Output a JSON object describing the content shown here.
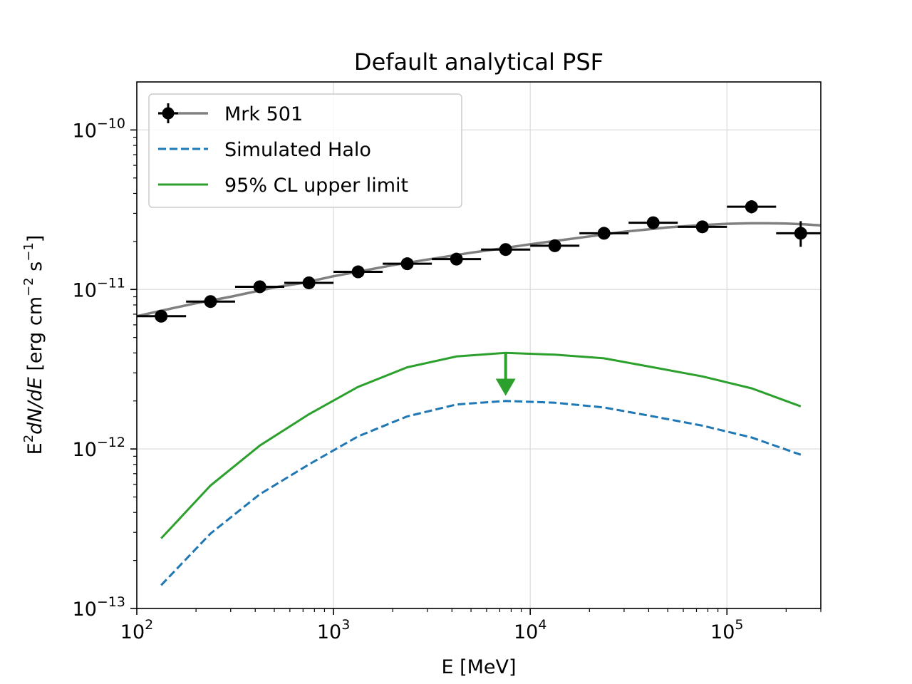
{
  "chart_data": {
    "type": "line",
    "title": "Default analytical PSF",
    "xlabel": "E [MeV]",
    "ylabel_base": "E",
    "ylabel_base_sup": "2",
    "ylabel_italic": "dN/dE",
    "ylabel_unit_open": " [erg cm",
    "ylabel_unit_sup1": "−2",
    "ylabel_unit_mid": " s",
    "ylabel_unit_sup2": "−1",
    "ylabel_unit_close": "]",
    "xscale": "log",
    "yscale": "log",
    "xlim": [
      100,
      300000
    ],
    "ylim": [
      1e-13,
      2e-10
    ],
    "grid": true,
    "legend_position": "upper-left",
    "x_ticks": [
      {
        "value": 100,
        "base": "10",
        "exp": "2"
      },
      {
        "value": 1000,
        "base": "10",
        "exp": "3"
      },
      {
        "value": 10000,
        "base": "10",
        "exp": "4"
      },
      {
        "value": 100000,
        "base": "10",
        "exp": "5"
      }
    ],
    "y_ticks": [
      {
        "value": 1e-13,
        "base": "10",
        "exp": "−13"
      },
      {
        "value": 1e-12,
        "base": "10",
        "exp": "−12"
      },
      {
        "value": 1e-11,
        "base": "10",
        "exp": "−11"
      },
      {
        "value": 1e-10,
        "base": "10",
        "exp": "−10"
      }
    ],
    "series": [
      {
        "name": "Mrk 501",
        "kind": "errorbar+model",
        "color": "#000000",
        "model_color": "#808080",
        "points": [
          {
            "x": 133,
            "y": 6.8e-12,
            "xlo": 100,
            "xhi": 178,
            "ylo": 6.5e-12,
            "yhi": 7.1e-12
          },
          {
            "x": 237,
            "y": 8.4e-12,
            "xlo": 178,
            "xhi": 316,
            "ylo": 8.1e-12,
            "yhi": 8.7e-12
          },
          {
            "x": 422,
            "y": 1.04e-11,
            "xlo": 316,
            "xhi": 562,
            "ylo": 1e-11,
            "yhi": 1.08e-11
          },
          {
            "x": 750,
            "y": 1.1e-11,
            "xlo": 562,
            "xhi": 1000,
            "ylo": 1.06e-11,
            "yhi": 1.14e-11
          },
          {
            "x": 1334,
            "y": 1.29e-11,
            "xlo": 1000,
            "xhi": 1778,
            "ylo": 1.25e-11,
            "yhi": 1.33e-11
          },
          {
            "x": 2371,
            "y": 1.45e-11,
            "xlo": 1778,
            "xhi": 3162,
            "ylo": 1.41e-11,
            "yhi": 1.49e-11
          },
          {
            "x": 4217,
            "y": 1.55e-11,
            "xlo": 3162,
            "xhi": 5623,
            "ylo": 1.5e-11,
            "yhi": 1.6e-11
          },
          {
            "x": 7499,
            "y": 1.78e-11,
            "xlo": 5623,
            "xhi": 10000,
            "ylo": 1.72e-11,
            "yhi": 1.84e-11
          },
          {
            "x": 13335,
            "y": 1.88e-11,
            "xlo": 10000,
            "xhi": 17783,
            "ylo": 1.81e-11,
            "yhi": 1.95e-11
          },
          {
            "x": 23714,
            "y": 2.25e-11,
            "xlo": 17783,
            "xhi": 31623,
            "ylo": 2.16e-11,
            "yhi": 2.34e-11
          },
          {
            "x": 42170,
            "y": 2.62e-11,
            "xlo": 31623,
            "xhi": 56234,
            "ylo": 2.5e-11,
            "yhi": 2.74e-11
          },
          {
            "x": 74989,
            "y": 2.47e-11,
            "xlo": 56234,
            "xhi": 100000,
            "ylo": 2.3e-11,
            "yhi": 2.64e-11
          },
          {
            "x": 133352,
            "y": 3.3e-11,
            "xlo": 100000,
            "xhi": 177828,
            "ylo": 3e-11,
            "yhi": 3.62e-11
          },
          {
            "x": 237137,
            "y": 2.25e-11,
            "xlo": 177828,
            "xhi": 316228,
            "ylo": 1.85e-11,
            "yhi": 2.68e-11
          }
        ],
        "model": {
          "x": [
            100,
            150,
            200,
            300,
            500,
            700,
            1000,
            2000,
            3000,
            5000,
            7000,
            10000,
            20000,
            30000,
            50000,
            70000,
            100000,
            130000,
            160000,
            200000,
            250000,
            300000
          ],
          "y": [
            6.8e-12,
            7.6e-12,
            8.2e-12,
            9e-12,
            1.03e-11,
            1.1e-11,
            1.21e-11,
            1.42e-11,
            1.54e-11,
            1.7e-11,
            1.8e-11,
            1.92e-11,
            2.15e-11,
            2.3e-11,
            2.45e-11,
            2.52e-11,
            2.58e-11,
            2.6e-11,
            2.6e-11,
            2.59e-11,
            2.56e-11,
            2.52e-11
          ]
        }
      },
      {
        "name": "Simulated Halo",
        "kind": "line",
        "style": "dashed",
        "color": "#1f77b4",
        "x": [
          133,
          237,
          422,
          750,
          1334,
          2371,
          4217,
          7499,
          13335,
          23714,
          42170,
          74989,
          133352,
          237137
        ],
        "y": [
          1.4e-13,
          2.95e-13,
          5.2e-13,
          8e-13,
          1.2e-12,
          1.6e-12,
          1.9e-12,
          2e-12,
          1.95e-12,
          1.82e-12,
          1.6e-12,
          1.4e-12,
          1.18e-12,
          9.2e-13
        ]
      },
      {
        "name": "95% CL upper limit",
        "kind": "line",
        "style": "solid",
        "color": "#2ca02c",
        "x": [
          133,
          237,
          422,
          750,
          1334,
          2371,
          4217,
          7499,
          13335,
          23714,
          42170,
          74989,
          133352,
          237137
        ],
        "y": [
          2.75e-13,
          5.9e-13,
          1.05e-12,
          1.65e-12,
          2.45e-12,
          3.25e-12,
          3.8e-12,
          4e-12,
          3.9e-12,
          3.7e-12,
          3.25e-12,
          2.85e-12,
          2.4e-12,
          1.85e-12
        ],
        "arrow": {
          "x": 7499,
          "y_from": 4e-12,
          "y_to": 2.2e-12
        }
      }
    ]
  }
}
